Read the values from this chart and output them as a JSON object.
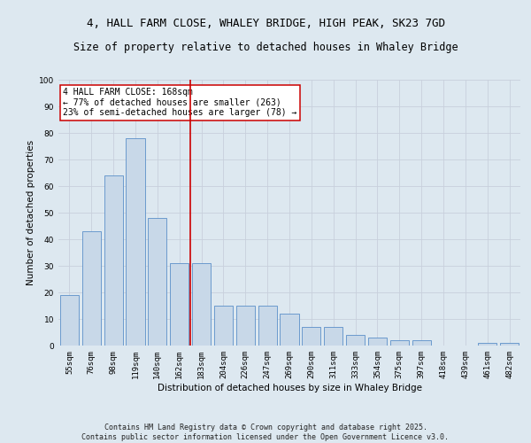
{
  "title1": "4, HALL FARM CLOSE, WHALEY BRIDGE, HIGH PEAK, SK23 7GD",
  "title2": "Size of property relative to detached houses in Whaley Bridge",
  "xlabel": "Distribution of detached houses by size in Whaley Bridge",
  "ylabel": "Number of detached properties",
  "categories": [
    "55sqm",
    "76sqm",
    "98sqm",
    "119sqm",
    "140sqm",
    "162sqm",
    "183sqm",
    "204sqm",
    "226sqm",
    "247sqm",
    "269sqm",
    "290sqm",
    "311sqm",
    "333sqm",
    "354sqm",
    "375sqm",
    "397sqm",
    "418sqm",
    "439sqm",
    "461sqm",
    "482sqm"
  ],
  "values": [
    19,
    43,
    64,
    78,
    48,
    31,
    31,
    15,
    15,
    15,
    12,
    7,
    7,
    4,
    3,
    2,
    2,
    0,
    0,
    1,
    1
  ],
  "bar_color": "#c8d8e8",
  "bar_edge_color": "#5b8fc9",
  "vline_x": 5.5,
  "vline_color": "#cc0000",
  "annotation_text": "4 HALL FARM CLOSE: 168sqm\n← 77% of detached houses are smaller (263)\n23% of semi-detached houses are larger (78) →",
  "annotation_box_color": "#ffffff",
  "annotation_box_edge": "#cc0000",
  "ylim": [
    0,
    100
  ],
  "yticks": [
    0,
    10,
    20,
    30,
    40,
    50,
    60,
    70,
    80,
    90,
    100
  ],
  "grid_color": "#c8d0dc",
  "background_color": "#dde8f0",
  "footer": "Contains HM Land Registry data © Crown copyright and database right 2025.\nContains public sector information licensed under the Open Government Licence v3.0.",
  "title_fontsize": 9,
  "subtitle_fontsize": 8.5,
  "axis_label_fontsize": 7.5,
  "tick_fontsize": 6.5,
  "annotation_fontsize": 7,
  "footer_fontsize": 6
}
